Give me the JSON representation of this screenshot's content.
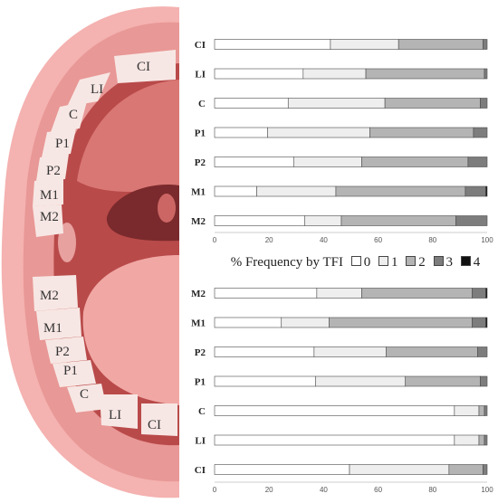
{
  "legend": {
    "title": "% Frequency by TFI",
    "items": [
      {
        "label": "0",
        "color": "#ffffff"
      },
      {
        "label": "1",
        "color": "#eeeeee"
      },
      {
        "label": "2",
        "color": "#b4b4b4"
      },
      {
        "label": "3",
        "color": "#7d7d7d"
      },
      {
        "label": "4",
        "color": "#111111"
      }
    ]
  },
  "illustration": {
    "upper_teeth": [
      "CI",
      "LI",
      "C",
      "P1",
      "P2",
      "M1",
      "M2"
    ],
    "lower_teeth": [
      "M2",
      "M1",
      "P2",
      "P1",
      "C",
      "LI",
      "CI"
    ]
  },
  "chart_data": [
    {
      "type": "bar",
      "orientation": "horizontal",
      "stacked": true,
      "title": "",
      "xlabel": "",
      "ylabel": "",
      "xlim": [
        0,
        100
      ],
      "xticks": [
        0,
        20,
        40,
        60,
        80,
        100
      ],
      "categories": [
        "CI",
        "LI",
        "C",
        "P1",
        "P2",
        "M1",
        "M2"
      ],
      "series": [
        {
          "name": "0",
          "values": [
            42.5,
            32.5,
            27,
            19.5,
            29,
            15.5,
            33
          ]
        },
        {
          "name": "1",
          "values": [
            25,
            23,
            35.5,
            37.5,
            25,
            29,
            13.5
          ]
        },
        {
          "name": "2",
          "values": [
            31,
            43.5,
            35,
            38,
            39,
            47.5,
            42
          ]
        },
        {
          "name": "3",
          "values": [
            1.5,
            1,
            2.5,
            5,
            7,
            7.5,
            11.5
          ]
        },
        {
          "name": "4",
          "values": [
            0,
            0,
            0,
            0,
            0,
            0.5,
            0
          ]
        }
      ]
    },
    {
      "type": "bar",
      "orientation": "horizontal",
      "stacked": true,
      "title": "",
      "xlabel": "",
      "ylabel": "",
      "xlim": [
        0,
        100
      ],
      "xticks": [
        0,
        20,
        40,
        60,
        80,
        100
      ],
      "categories": [
        "M2",
        "M1",
        "P2",
        "P1",
        "C",
        "LI",
        "CI"
      ],
      "series": [
        {
          "name": "0",
          "values": [
            37.5,
            24.5,
            36.5,
            37,
            88,
            88,
            49.5
          ]
        },
        {
          "name": "1",
          "values": [
            16.5,
            17.5,
            26.5,
            33,
            9,
            9,
            36.5
          ]
        },
        {
          "name": "2",
          "values": [
            40.5,
            52.5,
            33.5,
            27.5,
            2,
            2,
            12.5
          ]
        },
        {
          "name": "3",
          "values": [
            5,
            5,
            3.5,
            2.5,
            1,
            1,
            1.5
          ]
        },
        {
          "name": "4",
          "values": [
            0.5,
            0.5,
            0,
            0,
            0,
            0,
            0
          ]
        }
      ]
    }
  ]
}
